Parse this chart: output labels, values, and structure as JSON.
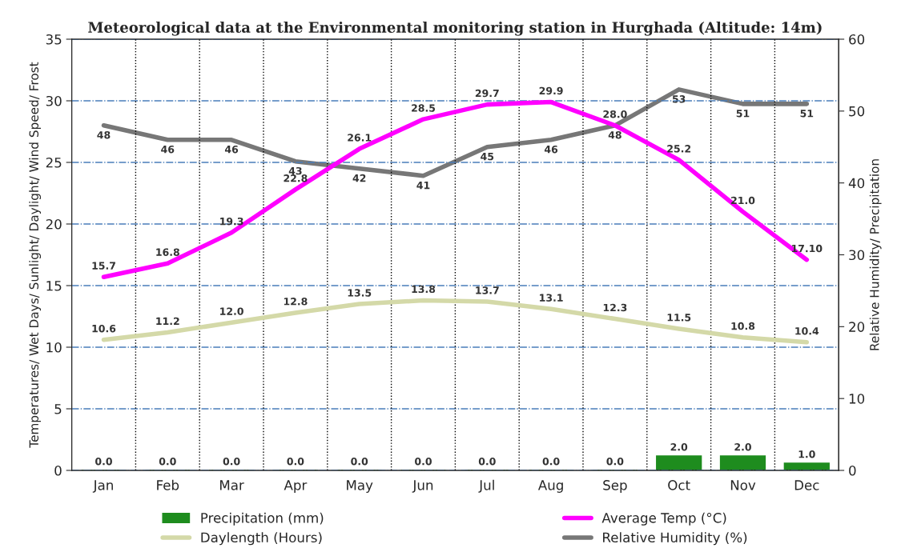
{
  "chart_data": {
    "type": "line",
    "title": "Meteorological data at the Environmental monitoring station in Hurghada (Altitude: 14m)",
    "ylabel": "Temperatures/ Wet Days/ Sunlight/ Daylight/ Wind Speed/ Frost",
    "y2label": "Relative Humidity/ Precipitation",
    "categories": [
      "Jan",
      "Feb",
      "Mar",
      "Apr",
      "May",
      "Jun",
      "Jul",
      "Aug",
      "Sep",
      "Oct",
      "Nov",
      "Dec"
    ],
    "series": [
      {
        "name": "Precipitation (mm)",
        "type": "bar",
        "axis": "y2",
        "color": "#1e8c1e",
        "values": [
          0,
          0,
          0,
          0,
          0,
          0,
          0,
          0,
          0,
          2.0,
          2.0,
          1.0
        ],
        "value_labels": [
          "0.0",
          "0.0",
          "0.0",
          "0.0",
          "0.0",
          "0.0",
          "0.0",
          "0.0",
          "0.0",
          "2.0",
          "2.0",
          "1.0"
        ]
      },
      {
        "name": "Average Temp (°C)",
        "color": "#ff00ff",
        "values": [
          15.7,
          16.8,
          19.3,
          22.8,
          26.1,
          28.5,
          29.7,
          29.9,
          28.0,
          25.2,
          21.0,
          17.1
        ],
        "value_labels": [
          "15.7",
          "16.8",
          "19.3",
          "22.8",
          "26.1",
          "28.5",
          "29.7",
          "29.9",
          "28.0",
          "25.2",
          "21.0",
          "17.10"
        ]
      },
      {
        "name": "Daylength (Hours)",
        "color": "#d4d9a8",
        "values": [
          10.6,
          11.2,
          12.0,
          12.8,
          13.5,
          13.8,
          13.7,
          13.1,
          12.3,
          11.5,
          10.8,
          10.4
        ],
        "value_labels": [
          "10.6",
          "11.2",
          "12.0",
          "12.8",
          "13.5",
          "13.8",
          "13.7",
          "13.1",
          "12.3",
          "11.5",
          "10.8",
          "10.4"
        ]
      },
      {
        "name": "Relative Humidity (%)",
        "axis": "y2",
        "color": "#777777",
        "values": [
          48,
          46,
          46,
          43,
          42,
          41,
          45,
          46,
          48,
          53,
          51,
          51
        ],
        "value_labels": [
          "48",
          "46",
          "46",
          "43",
          "42",
          "41",
          "45",
          "46",
          "48",
          "53",
          "51",
          "51"
        ]
      }
    ],
    "ylim": [
      0,
      35
    ],
    "yticks": [
      0,
      5,
      10,
      15,
      20,
      25,
      30,
      35
    ],
    "y2lim": [
      0,
      60
    ],
    "y2ticks": [
      0,
      10,
      20,
      30,
      40,
      50,
      60
    ],
    "grid": "y",
    "legend": "bottom",
    "line_style": "solid",
    "marker": "none"
  }
}
